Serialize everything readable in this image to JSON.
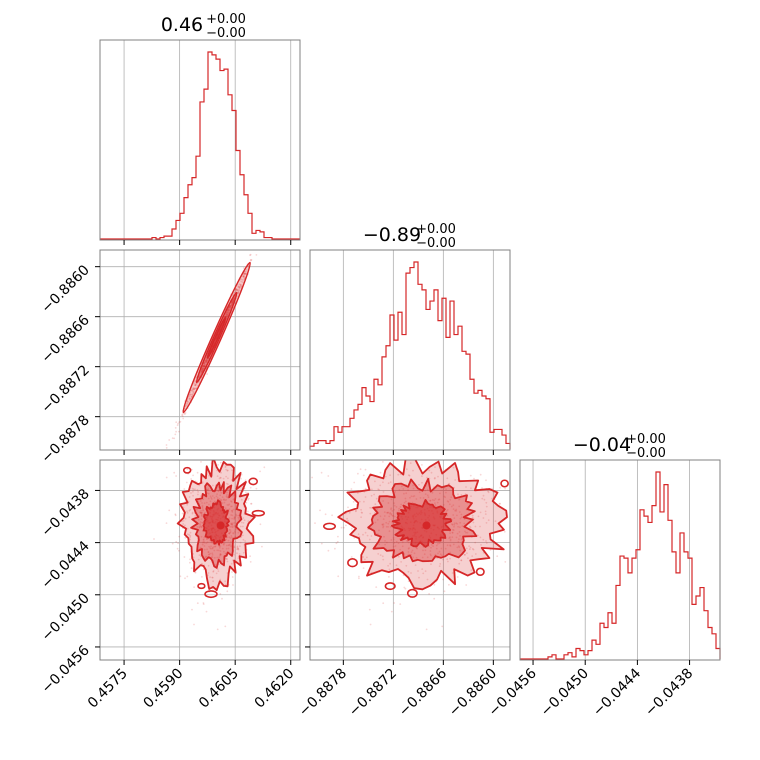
{
  "colors": {
    "series": "#d62728",
    "grid": "#b0b0b0",
    "frame": "#808080"
  },
  "chart_data": {
    "type": "corner",
    "params": [
      {
        "median": 0.46,
        "sigma": 0.00045,
        "range": [
          0.45685,
          0.46225
        ],
        "ticks": [
          0.4575,
          0.459,
          0.4605,
          0.462
        ],
        "tick_labels": [
          "0.4575",
          "0.4590",
          "0.4605",
          "0.4620"
        ],
        "title": {
          "main": "0.46",
          "plus": "+0.00",
          "minus": "−0.00"
        }
      },
      {
        "median": -0.88685,
        "sigma": 0.00045,
        "range": [
          -0.8882,
          -0.8858
        ],
        "ticks": [
          -0.8878,
          -0.8872,
          -0.8866,
          -0.886
        ],
        "tick_labels": [
          "−0.8878",
          "−0.8872",
          "−0.8866",
          "−0.8860"
        ],
        "title": {
          "main": "−0.89",
          "plus": "+0.00",
          "minus": "−0.00"
        }
      },
      {
        "median": -0.04418,
        "sigma": 0.00035,
        "range": [
          -0.04575,
          -0.04345
        ],
        "ticks": [
          -0.0456,
          -0.045,
          -0.0444,
          -0.0438
        ],
        "tick_labels": [
          "−0.0456",
          "−0.0450",
          "−0.0444",
          "−0.0438"
        ],
        "title": {
          "main": "−0.04",
          "plus": "+0.00",
          "minus": "−0.00"
        }
      }
    ],
    "grid": true
  }
}
